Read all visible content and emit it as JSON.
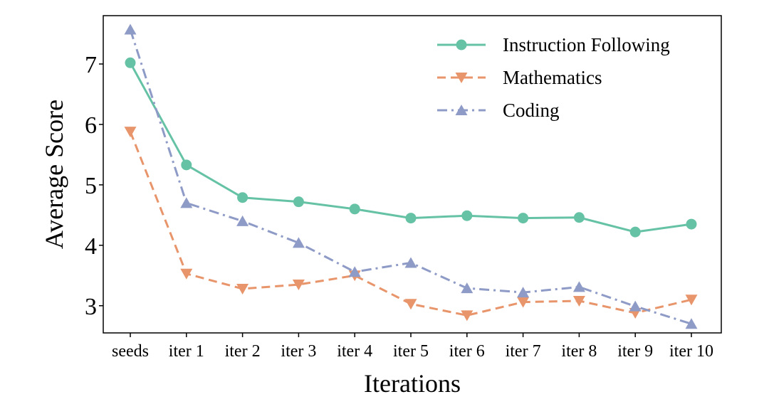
{
  "chart_data": {
    "type": "line",
    "categories": [
      "seeds",
      "iter 1",
      "iter 2",
      "iter 3",
      "iter 4",
      "iter 5",
      "iter 6",
      "iter 7",
      "iter 8",
      "iter 9",
      "iter 10"
    ],
    "xlabel": "Iterations",
    "ylabel": "Average Score",
    "ylim": [
      2.55,
      7.8
    ],
    "yticks": [
      3,
      4,
      5,
      6,
      7
    ],
    "grid": false,
    "legend_position": "top-right",
    "series": [
      {
        "name": "Instruction Following",
        "color": "#66c2a5",
        "line_style": "solid",
        "marker": "circle",
        "values": [
          7.02,
          5.33,
          4.79,
          4.72,
          4.6,
          4.45,
          4.49,
          4.45,
          4.46,
          4.22,
          4.35
        ]
      },
      {
        "name": "Mathematics",
        "color": "#e8956b",
        "line_style": "dashed",
        "marker": "triangle-down",
        "values": [
          5.88,
          3.53,
          3.28,
          3.35,
          3.5,
          3.03,
          2.84,
          3.06,
          3.08,
          2.88,
          3.1
        ]
      },
      {
        "name": "Coding",
        "color": "#8f9bc7",
        "line_style": "dashdot",
        "marker": "triangle-up",
        "values": [
          7.57,
          4.7,
          4.4,
          4.04,
          3.56,
          3.71,
          3.29,
          3.22,
          3.31,
          2.99,
          2.7
        ]
      }
    ]
  }
}
